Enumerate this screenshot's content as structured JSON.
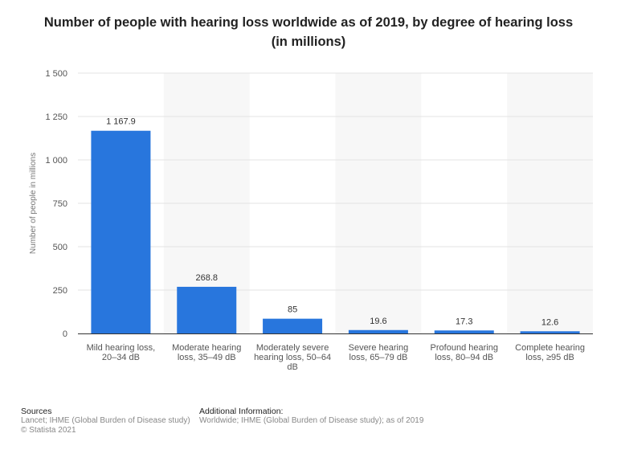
{
  "chart_data": {
    "type": "bar",
    "title": "Number of people with hearing loss worldwide as of 2019, by degree of hearing loss",
    "subtitle": "(in millions)",
    "ylabel": "Number of people in millions",
    "xlabel": "",
    "ylim": [
      0,
      1500
    ],
    "yticks": [
      0,
      250,
      500,
      750,
      1000,
      1250,
      1500
    ],
    "ytick_labels": [
      "0",
      "250",
      "500",
      "750",
      "1 000",
      "1 250",
      "1 500"
    ],
    "grid": true,
    "categories": [
      [
        "Mild hearing loss,",
        "20–34 dB"
      ],
      [
        "Moderate hearing",
        "loss, 35–49 dB"
      ],
      [
        "Moderately severe",
        "hearing loss, 50–64",
        "dB"
      ],
      [
        "Severe hearing",
        "loss, 65–79 dB"
      ],
      [
        "Profound hearing",
        "loss, 80–94 dB"
      ],
      [
        "Complete hearing",
        "loss, ≥95 dB"
      ]
    ],
    "values": [
      1167.9,
      268.8,
      85,
      19.6,
      17.3,
      12.6
    ],
    "data_labels": [
      "1 167.9",
      "268.8",
      "85",
      "19.6",
      "17.3",
      "12.6"
    ],
    "bar_color": "#2876dd"
  },
  "footer": {
    "sources_heading": "Sources",
    "sources_line1": "Lancet; IHME (Global Burden of Disease study)",
    "sources_line2": "© Statista 2021",
    "additional_heading": "Additional Information:",
    "additional_text": "Worldwide; IHME (Global Burden of Disease study); as of 2019"
  }
}
